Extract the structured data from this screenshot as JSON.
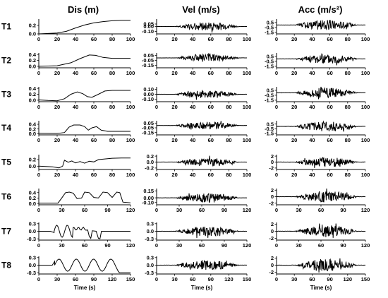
{
  "chart_data": {
    "type": "line",
    "column_titles": [
      "Dis (m)",
      "Vel (m/s)",
      "Acc (m/s²)"
    ],
    "row_labels": [
      "T1",
      "T2",
      "T3",
      "T4",
      "T5",
      "T6",
      "T7",
      "T8"
    ],
    "xlabel": "Time (s)",
    "rows": [
      {
        "x_ticks": [
          "0",
          "20",
          "40",
          "60",
          "80",
          "100"
        ],
        "xlim": [
          0,
          100
        ],
        "dis": {
          "ylim": [
            0,
            0.35
          ],
          "y_ticks": [
            "0.0",
            "0.2"
          ],
          "pts": [
            [
              0,
              0
            ],
            [
              20,
              0.02
            ],
            [
              30,
              0.06
            ],
            [
              40,
              0.14
            ],
            [
              50,
              0.21
            ],
            [
              60,
              0.26
            ],
            [
              70,
              0.29
            ],
            [
              80,
              0.31
            ],
            [
              90,
              0.32
            ],
            [
              100,
              0.32
            ]
          ]
        },
        "vel": {
          "ylim": [
            -0.15,
            0.15
          ],
          "y_ticks": [
            "0.05",
            "0.00",
            "-0.10"
          ]
        },
        "acc": {
          "ylim": [
            -1.8,
            1.2
          ],
          "y_ticks": [
            "0.5",
            "-0.5",
            "-1.5"
          ]
        }
      },
      {
        "x_ticks": [
          "0",
          "20",
          "40",
          "60",
          "80",
          "100"
        ],
        "xlim": [
          0,
          100
        ],
        "dis": {
          "ylim": [
            -0.05,
            0.45
          ],
          "y_ticks": [
            "0.4",
            "0.2",
            "0.0"
          ],
          "pts": [
            [
              0,
              0
            ],
            [
              20,
              0.02
            ],
            [
              35,
              0.12
            ],
            [
              45,
              0.26
            ],
            [
              55,
              0.38
            ],
            [
              62,
              0.37
            ],
            [
              70,
              0.3
            ],
            [
              80,
              0.27
            ],
            [
              100,
              0.27
            ]
          ]
        },
        "vel": {
          "ylim": [
            -0.2,
            0.1
          ],
          "y_ticks": [
            "0.05",
            "-0.05",
            "-0.15"
          ]
        },
        "acc": {
          "ylim": [
            -1.8,
            1.2
          ],
          "y_ticks": [
            "0.5",
            "-0.5",
            "-1.5"
          ]
        }
      },
      {
        "x_ticks": [
          "0",
          "20",
          "40",
          "60",
          "80",
          "100"
        ],
        "xlim": [
          0,
          100
        ],
        "dis": {
          "ylim": [
            -0.05,
            0.45
          ],
          "y_ticks": [
            "0.4",
            "0.2",
            "0.0"
          ],
          "pts": [
            [
              0,
              0.01
            ],
            [
              10,
              -0.01
            ],
            [
              20,
              -0.02
            ],
            [
              28,
              0.05
            ],
            [
              35,
              0.2
            ],
            [
              42,
              0.28
            ],
            [
              48,
              0.22
            ],
            [
              53,
              0.12
            ],
            [
              58,
              0.1
            ],
            [
              65,
              0.2
            ],
            [
              72,
              0.31
            ],
            [
              80,
              0.33
            ],
            [
              100,
              0.33
            ]
          ]
        },
        "vel": {
          "ylim": [
            -0.15,
            0.15
          ],
          "y_ticks": [
            "0.10",
            "0.00",
            "-0.10"
          ]
        },
        "acc": {
          "ylim": [
            -1.8,
            1.2
          ],
          "y_ticks": [
            "0.5",
            "-0.5",
            "-1.5"
          ]
        }
      },
      {
        "x_ticks": [
          "0",
          "20",
          "40",
          "60",
          "80",
          "100"
        ],
        "xlim": [
          0,
          100
        ],
        "dis": {
          "ylim": [
            -0.05,
            0.55
          ],
          "y_ticks": [
            "0.4",
            "0.2",
            "0.0"
          ],
          "pts": [
            [
              0,
              0.02
            ],
            [
              20,
              0.01
            ],
            [
              28,
              0.05
            ],
            [
              33,
              0.28
            ],
            [
              38,
              0.37
            ],
            [
              45,
              0.37
            ],
            [
              50,
              0.3
            ],
            [
              54,
              0.15
            ],
            [
              58,
              0.25
            ],
            [
              63,
              0.3
            ],
            [
              68,
              0.15
            ],
            [
              75,
              0.1
            ],
            [
              100,
              0.1
            ]
          ]
        },
        "vel": {
          "ylim": [
            -0.2,
            0.1
          ],
          "y_ticks": [
            "0.05",
            "-0.05",
            "-0.15"
          ]
        },
        "acc": {
          "ylim": [
            -1.8,
            1.2
          ],
          "y_ticks": [
            "0.5",
            "-0.5",
            "-1.5"
          ]
        }
      },
      {
        "x_ticks": [
          "0",
          "20",
          "40",
          "60",
          "80",
          "100"
        ],
        "xlim": [
          0,
          100
        ],
        "dis": {
          "ylim": [
            -0.1,
            0.35
          ],
          "y_ticks": [
            "0.2",
            "0.0"
          ],
          "pts": [
            [
              0,
              0
            ],
            [
              15,
              -0.02
            ],
            [
              22,
              -0.05
            ],
            [
              26,
              0.0
            ],
            [
              28,
              0.18
            ],
            [
              32,
              0.12
            ],
            [
              36,
              0.16
            ],
            [
              40,
              0.1
            ],
            [
              45,
              0.14
            ],
            [
              50,
              0.09
            ],
            [
              55,
              0.15
            ],
            [
              60,
              0.13
            ],
            [
              65,
              0.2
            ],
            [
              72,
              0.22
            ],
            [
              80,
              0.24
            ],
            [
              90,
              0.25
            ],
            [
              100,
              0.25
            ]
          ]
        },
        "vel": {
          "ylim": [
            -0.25,
            0.25
          ],
          "y_ticks": [
            "0.2",
            "0.0",
            "-0.2"
          ]
        },
        "acc": {
          "ylim": [
            -2.5,
            2.5
          ],
          "y_ticks": [
            "2",
            "0",
            "-2"
          ]
        }
      },
      {
        "x_ticks": [
          "0",
          "30",
          "60",
          "90",
          "120"
        ],
        "xlim": [
          0,
          120
        ],
        "dis": {
          "ylim": [
            -0.05,
            0.55
          ],
          "y_ticks": [
            "0.4",
            "0.2",
            "0.0"
          ],
          "pts": [
            [
              0,
              0.01
            ],
            [
              25,
              0.01
            ],
            [
              30,
              0.2
            ],
            [
              35,
              0.4
            ],
            [
              40,
              0.42
            ],
            [
              45,
              0.38
            ],
            [
              50,
              0.18
            ],
            [
              56,
              0.2
            ],
            [
              60,
              0.42
            ],
            [
              66,
              0.4
            ],
            [
              72,
              0.22
            ],
            [
              78,
              0.2
            ],
            [
              84,
              0.42
            ],
            [
              90,
              0.4
            ],
            [
              96,
              0.22
            ],
            [
              102,
              0.42
            ],
            [
              106,
              0.4
            ],
            [
              110,
              0.05
            ],
            [
              120,
              0.02
            ]
          ]
        },
        "vel": {
          "ylim": [
            -0.15,
            0.2
          ],
          "y_ticks": [
            "0.15",
            "0.00",
            "-0.10"
          ]
        },
        "acc": {
          "ylim": [
            -2.5,
            2.5
          ],
          "y_ticks": [
            "2",
            "0",
            "-2"
          ]
        }
      },
      {
        "x_ticks": [
          "0",
          "30",
          "60",
          "90",
          "120"
        ],
        "xlim": [
          0,
          120
        ],
        "dis": {
          "ylim": [
            -0.35,
            0.35
          ],
          "y_ticks": [
            "0.3",
            "0.0",
            "-0.3"
          ],
          "pts": []
        },
        "vel": {
          "ylim": [
            -0.35,
            0.35
          ],
          "y_ticks": [
            "0.3",
            "0.0",
            "-0.3"
          ]
        },
        "acc": {
          "ylim": [
            -2.5,
            2.5
          ],
          "y_ticks": [
            "2",
            "0",
            "-2"
          ]
        }
      },
      {
        "x_ticks": [
          "0",
          "30",
          "60",
          "90",
          "120",
          "150"
        ],
        "xlim": [
          0,
          150
        ],
        "dis": {
          "ylim": [
            -0.35,
            0.35
          ],
          "y_ticks": [
            "0.3",
            "0.0",
            "-0.3"
          ],
          "pts": []
        },
        "vel": {
          "ylim": [
            -0.35,
            0.35
          ],
          "y_ticks": [
            "0.3",
            "0.0",
            "-0.3"
          ]
        },
        "acc": {
          "ylim": [
            -2.5,
            2.5
          ],
          "y_ticks": [
            "2",
            "0",
            "-2"
          ]
        }
      }
    ]
  }
}
